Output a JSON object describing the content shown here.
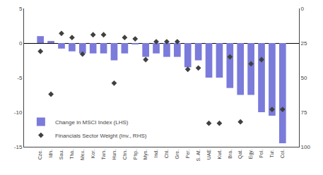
{
  "chart_data": {
    "type": "bar",
    "categories": [
      "Cze.",
      "Idn.",
      "Sau.",
      "Tha.",
      "Mex.",
      "Kor.",
      "Twn.",
      "Hun.",
      "Chn.",
      "Php.",
      "Mys.",
      "Ind.",
      "Chl.",
      "Gre.",
      "Per.",
      "S. Af.",
      "UAE",
      "Kwt.",
      "Bra.",
      "Qat.",
      "Egy.",
      "Pol.",
      "Tur.",
      "Col."
    ],
    "series": [
      {
        "name": "Change in MSCI Index (LHS)",
        "type": "bar",
        "color": "#7b7bdb",
        "values": [
          1.0,
          0.3,
          -0.8,
          -1.2,
          -1.5,
          -1.5,
          -1.5,
          -2.5,
          -1.5,
          -0.2,
          -2.0,
          -1.5,
          -2.0,
          -2.0,
          -3.5,
          -2.5,
          -5.0,
          -5.0,
          -6.5,
          -7.5,
          -7.5,
          -10.0,
          -10.5,
          -14.5
        ]
      },
      {
        "name": "Financials Sector Weight (Inv., RHS)",
        "type": "scatter",
        "axis": "y2",
        "marker": "diamond",
        "color": "#404040",
        "values": [
          31,
          62,
          18,
          21,
          33,
          19,
          19,
          54,
          21,
          22,
          37,
          24,
          24,
          24,
          44,
          43,
          83,
          83,
          35,
          82,
          40,
          37,
          73,
          73
        ]
      }
    ],
    "ylim": [
      -15,
      5
    ],
    "yticks": [
      -15,
      -10,
      -5,
      0,
      5
    ],
    "y2lim": [
      100,
      0
    ],
    "y2ticks": [
      0,
      25,
      50,
      75,
      100
    ],
    "grid": false,
    "legend": "lower left"
  }
}
